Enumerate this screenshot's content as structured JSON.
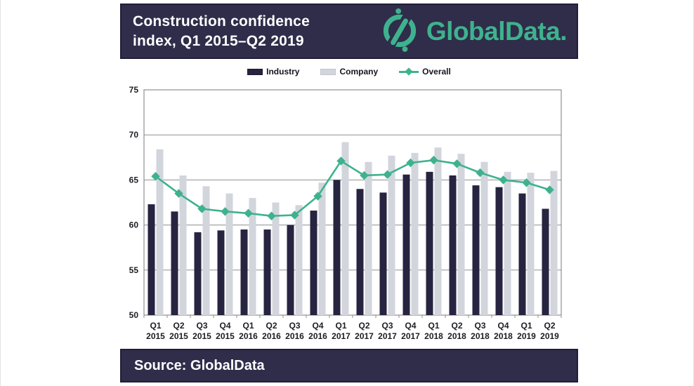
{
  "header": {
    "title_line1": "Construction confidence",
    "title_line2": "index, Q1 2015–Q2 2019",
    "brand": "GlobalData."
  },
  "footer": {
    "source": "Source: GlobalData"
  },
  "colors": {
    "panel": "#2f2d4a",
    "panel_border": "#201e38",
    "accent_teal": "#3eb28e",
    "industry": "#262440",
    "company": "#d2d5dc",
    "grid": "#8f8f8f",
    "axis_text": "#1c1c24"
  },
  "chart_data": {
    "type": "bar",
    "title": "Construction confidence index, Q1 2015–Q2 2019",
    "categories": [
      "Q1 2015",
      "Q2 2015",
      "Q3 2015",
      "Q4 2015",
      "Q1 2016",
      "Q2 2016",
      "Q3 2016",
      "Q4 2016",
      "Q1 2017",
      "Q2 2017",
      "Q3 2017",
      "Q4 2017",
      "Q1 2018",
      "Q2 2018",
      "Q3 2018",
      "Q4 2018",
      "Q1 2019",
      "Q2 2019"
    ],
    "series": [
      {
        "name": "Industry",
        "type": "bar",
        "color": "#262440",
        "values": [
          62.3,
          61.5,
          59.2,
          59.4,
          59.5,
          59.5,
          60.0,
          61.6,
          65.0,
          64.0,
          63.6,
          65.6,
          65.9,
          65.5,
          64.4,
          64.2,
          63.5,
          61.8
        ]
      },
      {
        "name": "Company",
        "type": "bar",
        "color": "#d2d5dc",
        "values": [
          68.4,
          65.5,
          64.3,
          63.5,
          63.0,
          62.5,
          62.2,
          64.7,
          69.2,
          67.0,
          67.7,
          68.0,
          68.6,
          67.9,
          67.0,
          65.9,
          65.8,
          66.0
        ]
      },
      {
        "name": "Overall",
        "type": "line",
        "color": "#3eb28e",
        "values": [
          65.4,
          63.5,
          61.8,
          61.5,
          61.3,
          61.0,
          61.1,
          63.2,
          67.1,
          65.5,
          65.6,
          66.9,
          67.2,
          66.8,
          65.8,
          65.0,
          64.7,
          63.9
        ]
      }
    ],
    "xlabel": "",
    "ylabel": "",
    "ylim": [
      50,
      75
    ],
    "yticks": [
      50,
      55,
      60,
      65,
      70,
      75
    ],
    "grid": true,
    "legend_position": "top"
  }
}
